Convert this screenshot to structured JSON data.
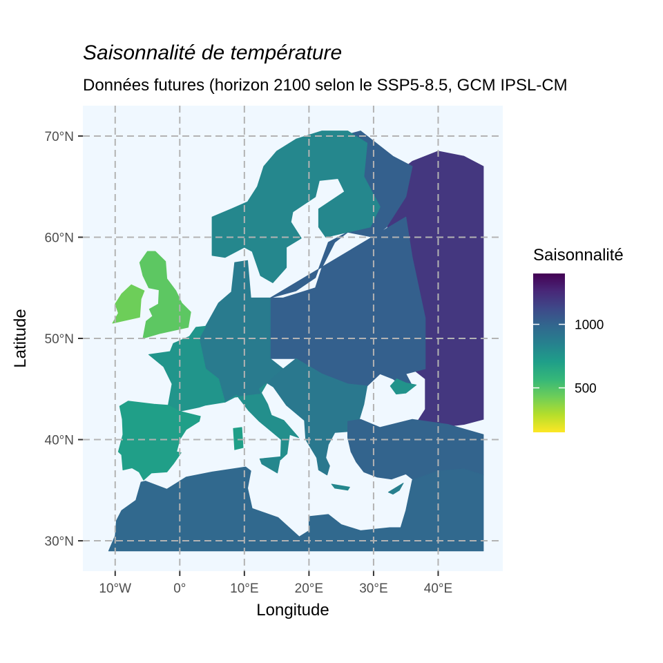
{
  "chart_data": {
    "type": "heatmap",
    "title": "Saisonnalité de température",
    "subtitle": "Données futures (horizon 2100 selon le SSP5-8.5, GCM IPSL-CM",
    "xlabel": "Longitude",
    "ylabel": "Latitude",
    "xlim": [
      -15,
      50
    ],
    "ylim": [
      27,
      73
    ],
    "x_ticks": [
      {
        "value": -10,
        "label": "10°W"
      },
      {
        "value": 0,
        "label": "0°"
      },
      {
        "value": 10,
        "label": "10°E"
      },
      {
        "value": 20,
        "label": "20°E"
      },
      {
        "value": 30,
        "label": "30°E"
      },
      {
        "value": 40,
        "label": "40°E"
      }
    ],
    "y_ticks": [
      {
        "value": 30,
        "label": "30°N"
      },
      {
        "value": 40,
        "label": "40°N"
      },
      {
        "value": 50,
        "label": "50°N"
      },
      {
        "value": 60,
        "label": "60°N"
      },
      {
        "value": 70,
        "label": "70°N"
      }
    ],
    "grid": "dashed",
    "panel_background": "#f0f8ff",
    "legend": {
      "title": "Saisonnalité",
      "placement": "right",
      "range": [
        150,
        1400
      ],
      "breaks": [
        {
          "value": 1000,
          "label": "1000"
        },
        {
          "value": 500,
          "label": "500"
        }
      ],
      "colors": [
        "#fde725",
        "#b5de2b",
        "#6ece58",
        "#35b779",
        "#1f9e89",
        "#26828e",
        "#31688e",
        "#3e4989",
        "#482878",
        "#440154"
      ]
    },
    "regions": [
      {
        "name": "western-russia",
        "value": 1200
      },
      {
        "name": "eastern-europe",
        "value": 1020
      },
      {
        "name": "central-europe",
        "value": 880
      },
      {
        "name": "scandinavia",
        "value": 820
      },
      {
        "name": "iberia",
        "value": 700
      },
      {
        "name": "france",
        "value": 750
      },
      {
        "name": "british-isles",
        "value": 470
      },
      {
        "name": "ireland",
        "value": 430
      },
      {
        "name": "north-africa",
        "value": 980
      },
      {
        "name": "turkey",
        "value": 1000
      },
      {
        "name": "italy",
        "value": 780
      },
      {
        "name": "balkans",
        "value": 900
      }
    ]
  }
}
